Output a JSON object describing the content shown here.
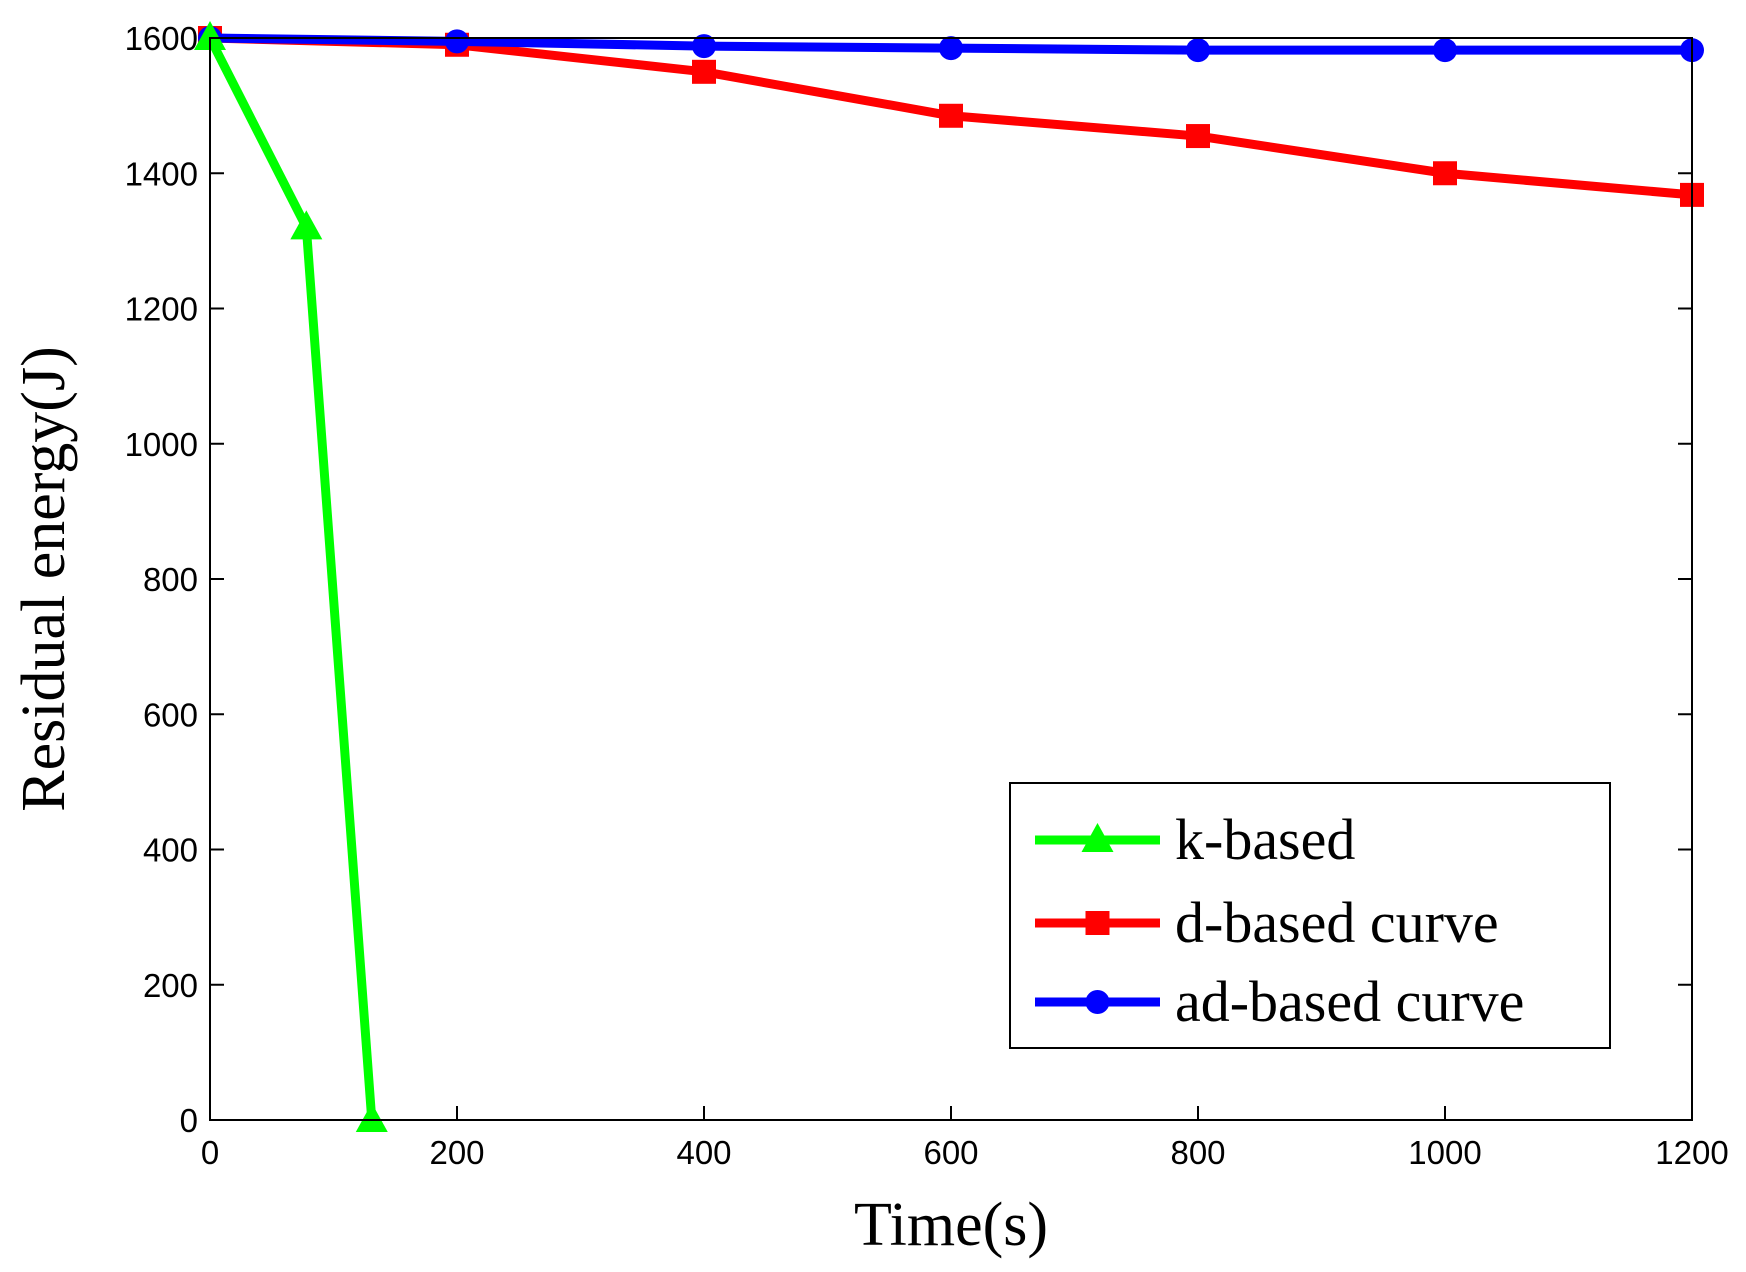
{
  "chart_data": {
    "type": "line",
    "title": "",
    "xlabel": "Time(s)",
    "ylabel": "Residual energy(J)",
    "xlim": [
      0,
      1200
    ],
    "ylim": [
      0,
      1600
    ],
    "xticks": [
      0,
      200,
      400,
      600,
      800,
      1000,
      1200
    ],
    "yticks": [
      0,
      200,
      400,
      600,
      800,
      1000,
      1200,
      1400,
      1600
    ],
    "grid": false,
    "legend_position": "bottom-right",
    "series": [
      {
        "name": "k-based",
        "color": "#00ff00",
        "marker": "triangle",
        "x": [
          0,
          78,
          131
        ],
        "y": [
          1600,
          1320,
          0
        ]
      },
      {
        "name": "d-based curve",
        "color": "#ff0000",
        "marker": "square",
        "x": [
          0,
          200,
          400,
          600,
          800,
          1000,
          1200
        ],
        "y": [
          1600,
          1590,
          1550,
          1485,
          1455,
          1400,
          1368
        ]
      },
      {
        "name": "ad-based curve",
        "color": "#0000ff",
        "marker": "circle",
        "x": [
          0,
          200,
          400,
          600,
          800,
          1000,
          1200
        ],
        "y": [
          1600,
          1595,
          1588,
          1585,
          1582,
          1582,
          1582
        ]
      }
    ]
  }
}
